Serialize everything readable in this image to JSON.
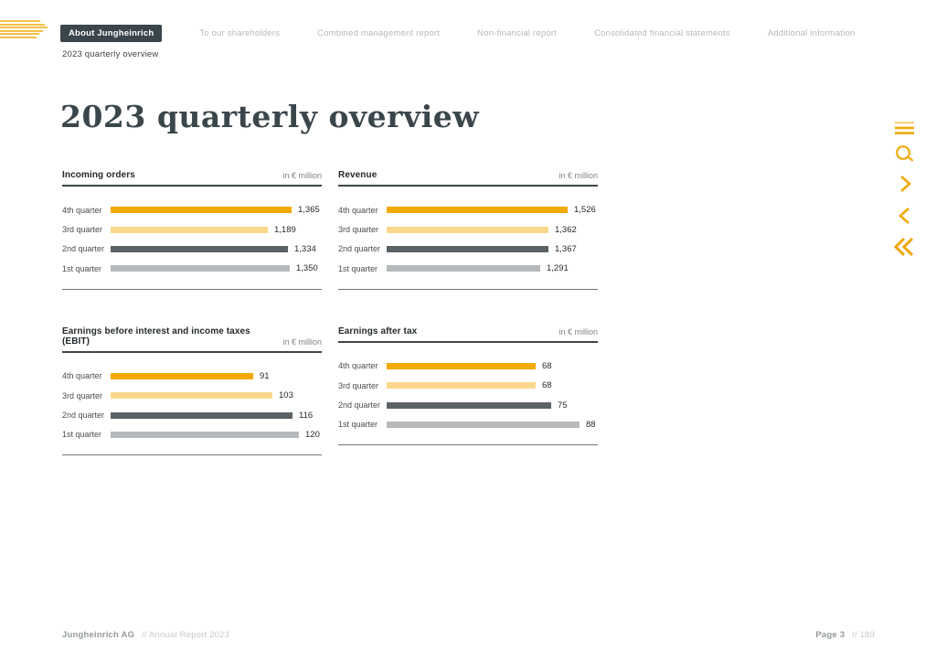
{
  "page": {
    "title": "2023 quarterly overview"
  },
  "nav": {
    "items": [
      {
        "label": "About Jungheinrich",
        "active": true
      },
      {
        "label": "To our shareholders",
        "active": false
      },
      {
        "label": "Combined management report",
        "active": false
      },
      {
        "label": "Non-financial report",
        "active": false
      },
      {
        "label": "Consolidated financial statements",
        "active": false
      },
      {
        "label": "Additional information",
        "active": false
      }
    ],
    "breadcrumb": "2023 quarterly overview"
  },
  "side_toolbar": {
    "icons": [
      "menu-icon",
      "search-icon",
      "chevron-right-icon",
      "chevron-left-icon",
      "double-chevron-left-icon"
    ]
  },
  "colors": {
    "accent_yellow": "#F3A900",
    "accent_yellow_light": "#FBD78D",
    "bar_dark_gray": "#5B6266",
    "bar_light_gray": "#B6BABC",
    "nav_active_bg": "#3A464B",
    "icon_yellow": "#F2A90B",
    "logo_yellow": "#F5C14A"
  },
  "chart_data": [
    {
      "type": "bar",
      "orientation": "horizontal",
      "title": "Incoming orders",
      "unit": "in € million",
      "categories": [
        "4th quarter",
        "3rd quarter",
        "2nd quarter",
        "1st quarter"
      ],
      "values": [
        1365,
        1189,
        1334,
        1350
      ],
      "value_labels": [
        "1,365",
        "1,189",
        "1,334",
        "1,350"
      ],
      "bar_colors": [
        "#F3A900",
        "#FBD78D",
        "#5B6266",
        "#B6BABC"
      ],
      "grid": false,
      "legend": false
    },
    {
      "type": "bar",
      "orientation": "horizontal",
      "title": "Revenue",
      "unit": "in € million",
      "categories": [
        "4th quarter",
        "3rd quarter",
        "2nd quarter",
        "1st quarter"
      ],
      "values": [
        1526,
        1362,
        1367,
        1291
      ],
      "value_labels": [
        "1,526",
        "1,362",
        "1,367",
        "1,291"
      ],
      "bar_colors": [
        "#F3A900",
        "#FBD78D",
        "#5B6266",
        "#B6BABC"
      ],
      "grid": false,
      "legend": false
    },
    {
      "type": "bar",
      "orientation": "horizontal",
      "title": "Earnings before interest and income taxes (EBIT)",
      "unit": "in € million",
      "categories": [
        "4th quarter",
        "3rd quarter",
        "2nd quarter",
        "1st quarter"
      ],
      "values": [
        91,
        103,
        116,
        120
      ],
      "value_labels": [
        "91",
        "103",
        "116",
        "120"
      ],
      "bar_colors": [
        "#F3A900",
        "#FBD78D",
        "#5B6266",
        "#B6BABC"
      ],
      "grid": false,
      "legend": false
    },
    {
      "type": "bar",
      "orientation": "horizontal",
      "title": "Earnings after tax",
      "unit": "in € million",
      "categories": [
        "4th quarter",
        "3rd quarter",
        "2nd quarter",
        "1st quarter"
      ],
      "values": [
        68,
        68,
        75,
        88
      ],
      "value_labels": [
        "68",
        "68",
        "75",
        "88"
      ],
      "bar_colors": [
        "#F3A900",
        "#FBD78D",
        "#5B6266",
        "#B6BABC"
      ],
      "grid": false,
      "legend": false
    }
  ],
  "footer": {
    "company": "Jungheinrich AG",
    "report": "// Annual Report 2023",
    "page": "Page 3",
    "total": "// 189"
  }
}
